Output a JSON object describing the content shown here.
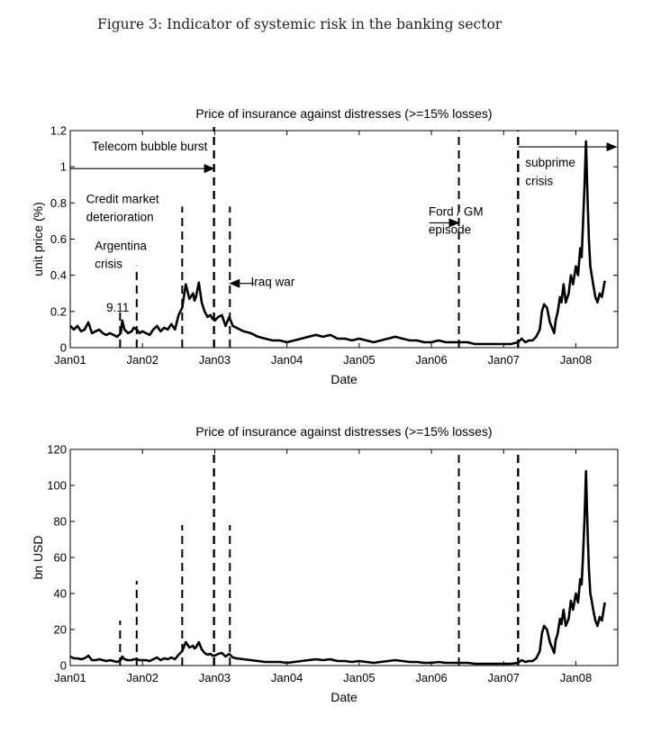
{
  "figure_caption": "Figure 3: Indicator of systemic risk in the banking sector",
  "chart_data": [
    {
      "type": "line",
      "title": "Price of insurance against distresses (>=15% losses)",
      "xlabel": "Date",
      "ylabel": "unit price (%)",
      "ylim": [
        0,
        1.2
      ],
      "yticks": [
        "0",
        "0.2",
        "0.4",
        "0.6",
        "0.8",
        "1",
        "1.2"
      ],
      "xlim": [
        2001.0,
        2008.58
      ],
      "xticks": [
        "Jan01",
        "Jan02",
        "Jan03",
        "Jan04",
        "Jan05",
        "Jan06",
        "Jan07",
        "Jan08"
      ],
      "grid": false,
      "series": [
        {
          "x": [
            2001.0,
            2001.05,
            2001.1,
            2001.15,
            2001.2,
            2001.25,
            2001.3,
            2001.35,
            2001.4,
            2001.45,
            2001.5,
            2001.55,
            2001.6,
            2001.65,
            2001.7,
            2001.72,
            2001.75,
            2001.8,
            2001.85,
            2001.88,
            2001.92,
            2001.96,
            2002.0,
            2002.05,
            2002.1,
            2002.15,
            2002.2,
            2002.25,
            2002.3,
            2002.35,
            2002.4,
            2002.45,
            2002.5,
            2002.55,
            2002.6,
            2002.65,
            2002.7,
            2002.72,
            2002.74,
            2002.78,
            2002.82,
            2002.86,
            2002.9,
            2002.94,
            2002.97,
            2003.0,
            2003.05,
            2003.1,
            2003.15,
            2003.2,
            2003.25,
            2003.3,
            2003.4,
            2003.5,
            2003.6,
            2003.7,
            2003.8,
            2003.9,
            2004.0,
            2004.1,
            2004.2,
            2004.3,
            2004.4,
            2004.5,
            2004.6,
            2004.7,
            2004.8,
            2004.9,
            2005.0,
            2005.1,
            2005.2,
            2005.3,
            2005.4,
            2005.5,
            2005.6,
            2005.7,
            2005.8,
            2005.9,
            2006.0,
            2006.1,
            2006.2,
            2006.3,
            2006.4,
            2006.5,
            2006.6,
            2006.7,
            2006.8,
            2006.9,
            2007.0,
            2007.1,
            2007.2,
            2007.25,
            2007.3,
            2007.35,
            2007.4,
            2007.45,
            2007.5,
            2007.53,
            2007.56,
            2007.6,
            2007.64,
            2007.68,
            2007.7,
            2007.72,
            2007.75,
            2007.78,
            2007.8,
            2007.83,
            2007.86,
            2007.9,
            2007.93,
            2007.96,
            2008.0,
            2008.03,
            2008.06,
            2008.08,
            2008.1,
            2008.12,
            2008.14,
            2008.16,
            2008.18,
            2008.2,
            2008.22,
            2008.24,
            2008.27,
            2008.3,
            2008.33,
            2008.36,
            2008.4
          ],
          "y": [
            0.12,
            0.1,
            0.12,
            0.09,
            0.1,
            0.14,
            0.08,
            0.09,
            0.1,
            0.08,
            0.07,
            0.08,
            0.07,
            0.06,
            0.08,
            0.15,
            0.1,
            0.08,
            0.09,
            0.11,
            0.1,
            0.08,
            0.09,
            0.08,
            0.07,
            0.1,
            0.12,
            0.09,
            0.11,
            0.1,
            0.13,
            0.1,
            0.18,
            0.22,
            0.35,
            0.27,
            0.3,
            0.26,
            0.28,
            0.36,
            0.25,
            0.2,
            0.17,
            0.18,
            0.16,
            0.15,
            0.17,
            0.18,
            0.12,
            0.17,
            0.12,
            0.11,
            0.09,
            0.08,
            0.06,
            0.05,
            0.04,
            0.04,
            0.03,
            0.04,
            0.05,
            0.06,
            0.07,
            0.06,
            0.07,
            0.05,
            0.05,
            0.04,
            0.05,
            0.04,
            0.03,
            0.04,
            0.05,
            0.06,
            0.05,
            0.04,
            0.04,
            0.03,
            0.03,
            0.04,
            0.03,
            0.03,
            0.03,
            0.03,
            0.02,
            0.02,
            0.02,
            0.02,
            0.02,
            0.02,
            0.03,
            0.05,
            0.03,
            0.04,
            0.04,
            0.06,
            0.1,
            0.2,
            0.24,
            0.22,
            0.14,
            0.1,
            0.08,
            0.15,
            0.2,
            0.28,
            0.25,
            0.35,
            0.25,
            0.3,
            0.4,
            0.35,
            0.45,
            0.4,
            0.55,
            0.5,
            0.7,
            0.9,
            1.14,
            0.85,
            0.6,
            0.45,
            0.4,
            0.35,
            0.28,
            0.25,
            0.3,
            0.28,
            0.37
          ]
        }
      ],
      "event_lines_x": [
        2001.69,
        2001.92,
        2002.55,
        2002.99,
        2003.21,
        2006.38,
        2007.2
      ],
      "annotations": [
        {
          "text": "9.11",
          "x": 2001.5,
          "y": 0.2
        },
        {
          "text": "Argentina",
          "x": 2001.34,
          "y": 0.54
        },
        {
          "text": "crisis",
          "x": 2001.34,
          "y": 0.44
        },
        {
          "text": "Credit market",
          "x": 2001.22,
          "y": 0.8
        },
        {
          "text": "deterioration",
          "x": 2001.22,
          "y": 0.7
        },
        {
          "text": "Telecom bubble burst",
          "x": 2001.3,
          "y": 1.09
        },
        {
          "text": "Iraq war",
          "x": 2003.5,
          "y": 0.34
        },
        {
          "text": "Ford / GM",
          "x": 2005.96,
          "y": 0.73
        },
        {
          "text": "episode",
          "x": 2005.96,
          "y": 0.63
        },
        {
          "text": "subprime",
          "x": 2007.3,
          "y": 1.0
        },
        {
          "text": "crisis",
          "x": 2007.3,
          "y": 0.9
        }
      ]
    },
    {
      "type": "line",
      "title": "Price of insurance against distresses (>=15% losses)",
      "xlabel": "Date",
      "ylabel": "bn USD",
      "ylim": [
        0,
        120
      ],
      "yticks": [
        "0",
        "20",
        "40",
        "60",
        "80",
        "100",
        "120"
      ],
      "xlim": [
        2001.0,
        2008.58
      ],
      "xticks": [
        "Jan01",
        "Jan02",
        "Jan03",
        "Jan04",
        "Jan05",
        "Jan06",
        "Jan07",
        "Jan08"
      ],
      "grid": false,
      "series": [
        {
          "x": [
            2001.0,
            2001.05,
            2001.1,
            2001.15,
            2001.2,
            2001.25,
            2001.3,
            2001.35,
            2001.4,
            2001.45,
            2001.5,
            2001.55,
            2001.6,
            2001.65,
            2001.7,
            2001.72,
            2001.75,
            2001.8,
            2001.85,
            2001.88,
            2001.92,
            2001.96,
            2002.0,
            2002.05,
            2002.1,
            2002.15,
            2002.2,
            2002.25,
            2002.3,
            2002.35,
            2002.4,
            2002.45,
            2002.5,
            2002.55,
            2002.6,
            2002.65,
            2002.7,
            2002.72,
            2002.74,
            2002.78,
            2002.82,
            2002.86,
            2002.9,
            2002.94,
            2002.97,
            2003.0,
            2003.05,
            2003.1,
            2003.15,
            2003.2,
            2003.25,
            2003.3,
            2003.4,
            2003.5,
            2003.6,
            2003.7,
            2003.8,
            2003.9,
            2004.0,
            2004.1,
            2004.2,
            2004.3,
            2004.4,
            2004.5,
            2004.6,
            2004.7,
            2004.8,
            2004.9,
            2005.0,
            2005.1,
            2005.2,
            2005.3,
            2005.4,
            2005.5,
            2005.6,
            2005.7,
            2005.8,
            2005.9,
            2006.0,
            2006.1,
            2006.2,
            2006.3,
            2006.4,
            2006.5,
            2006.6,
            2006.7,
            2006.8,
            2006.9,
            2007.0,
            2007.1,
            2007.2,
            2007.25,
            2007.3,
            2007.35,
            2007.4,
            2007.45,
            2007.5,
            2007.53,
            2007.56,
            2007.6,
            2007.64,
            2007.68,
            2007.7,
            2007.72,
            2007.75,
            2007.78,
            2007.8,
            2007.83,
            2007.86,
            2007.9,
            2007.93,
            2007.96,
            2008.0,
            2008.03,
            2008.06,
            2008.08,
            2008.1,
            2008.12,
            2008.14,
            2008.16,
            2008.18,
            2008.2,
            2008.22,
            2008.24,
            2008.27,
            2008.3,
            2008.33,
            2008.36,
            2008.4
          ],
          "y": [
            5,
            4,
            4,
            3.5,
            4,
            5.5,
            3,
            3,
            3.5,
            3,
            2.5,
            3,
            2.5,
            2,
            3,
            5,
            3.5,
            3,
            3,
            3.5,
            3.5,
            3,
            3,
            3,
            2.5,
            3.5,
            4.5,
            3,
            4,
            3.5,
            4.5,
            3.5,
            6,
            8,
            13,
            10,
            11,
            9.5,
            10,
            13,
            9,
            7,
            6,
            6.5,
            5.5,
            5.5,
            6.5,
            7,
            5,
            6.5,
            4.5,
            4,
            3.5,
            3,
            2.5,
            2,
            2,
            2,
            1.5,
            2,
            2.5,
            3,
            3.5,
            3,
            3.5,
            2.5,
            2.5,
            2,
            2.5,
            2,
            1.5,
            2,
            2.5,
            3,
            2.5,
            2,
            2,
            1.5,
            1.5,
            2,
            1.5,
            1.5,
            1.5,
            1.5,
            1,
            1,
            1,
            1,
            1,
            1,
            1.5,
            3,
            2,
            2.5,
            2.5,
            4,
            8,
            18,
            22,
            20,
            13,
            9,
            7,
            14,
            18,
            26,
            23,
            31,
            22,
            26,
            36,
            31,
            40,
            35,
            48,
            45,
            62,
            82,
            108,
            78,
            54,
            40,
            36,
            31,
            25,
            22,
            27,
            25,
            35
          ]
        }
      ],
      "event_lines_x": [
        2001.69,
        2001.92,
        2002.55,
        2002.99,
        2003.21,
        2006.38,
        2007.2
      ]
    }
  ]
}
